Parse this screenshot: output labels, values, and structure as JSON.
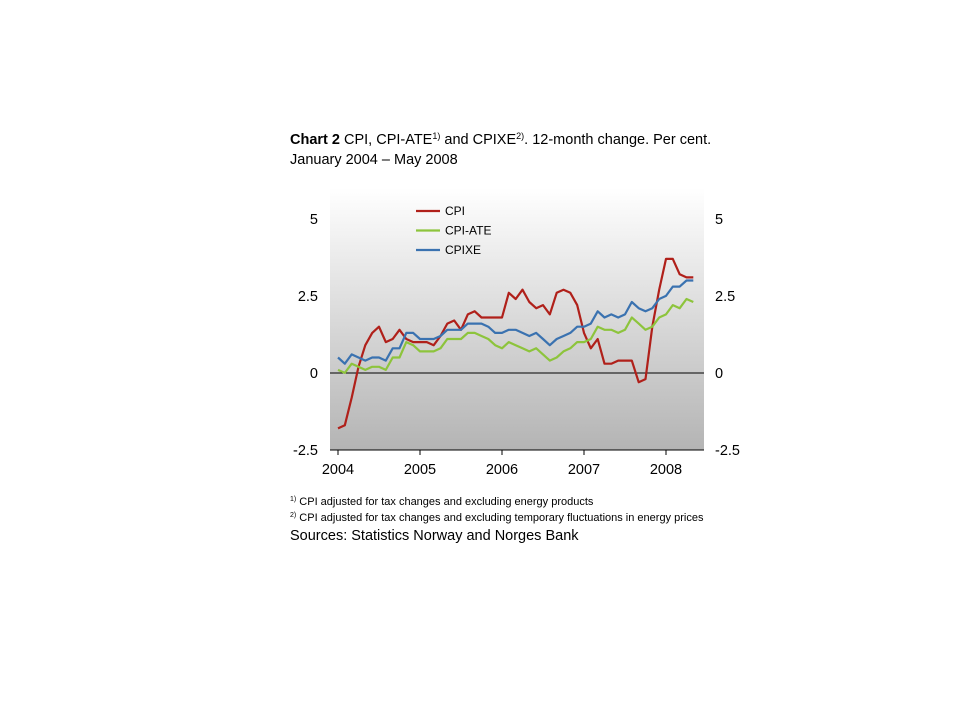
{
  "title": {
    "prefix": "Chart 2",
    "part1": " CPI, CPI-ATE",
    "sup1": "1)",
    "part2": " and CPIXE",
    "sup2": "2)",
    "part3": ". 12-month change. Per cent. January 2004 – May 2008"
  },
  "notes": [
    {
      "sup": "1)",
      "text": " CPI adjusted for tax changes and excluding energy products"
    },
    {
      "sup": "2)",
      "text": " CPI adjusted for tax changes and excluding temporary fluctuations in energy prices"
    }
  ],
  "sources": "Sources: Statistics Norway and Norges Bank",
  "colors": {
    "CPI": "#b0201a",
    "CPI-ATE": "#8dc43c",
    "CPIXE": "#3a72b0",
    "plot_bg_top": "#ffffff",
    "plot_bg_bottom": "#b4b4b4"
  },
  "chart_data": {
    "type": "line",
    "x_start": "2004-01",
    "x_end": "2008-05",
    "frequency": "monthly",
    "xticks": [
      "2004",
      "2005",
      "2006",
      "2007",
      "2008"
    ],
    "yticks_left": [
      "5",
      "2.5",
      "0",
      "-2.5"
    ],
    "yticks_right": [
      "5",
      "2.5",
      "0",
      "-2.5"
    ],
    "ylim": [
      -2.5,
      6
    ],
    "zero_line": true,
    "grid": false,
    "legend_position": "top-left",
    "series": [
      {
        "name": "CPI",
        "values": [
          -1.8,
          -1.7,
          -0.8,
          0.2,
          0.9,
          1.3,
          1.5,
          1.0,
          1.1,
          1.4,
          1.1,
          1.0,
          1.0,
          1.0,
          0.9,
          1.2,
          1.6,
          1.7,
          1.4,
          1.9,
          2.0,
          1.8,
          1.8,
          1.8,
          1.8,
          2.6,
          2.4,
          2.7,
          2.3,
          2.1,
          2.2,
          1.9,
          2.6,
          2.7,
          2.6,
          2.2,
          1.3,
          0.8,
          1.1,
          0.3,
          0.3,
          0.4,
          0.4,
          0.4,
          -0.3,
          -0.2,
          1.5,
          2.7,
          3.7,
          3.7,
          3.2,
          3.1,
          3.1
        ]
      },
      {
        "name": "CPI-ATE",
        "values": [
          0.1,
          0.0,
          0.3,
          0.2,
          0.1,
          0.2,
          0.2,
          0.1,
          0.5,
          0.5,
          1.0,
          0.9,
          0.7,
          0.7,
          0.7,
          0.8,
          1.1,
          1.1,
          1.1,
          1.3,
          1.3,
          1.2,
          1.1,
          0.9,
          0.8,
          1.0,
          0.9,
          0.8,
          0.7,
          0.8,
          0.6,
          0.4,
          0.5,
          0.7,
          0.8,
          1.0,
          1.0,
          1.1,
          1.5,
          1.4,
          1.4,
          1.3,
          1.4,
          1.8,
          1.6,
          1.4,
          1.5,
          1.8,
          1.9,
          2.2,
          2.1,
          2.4,
          2.3
        ]
      },
      {
        "name": "CPIXE",
        "values": [
          0.5,
          0.3,
          0.6,
          0.5,
          0.4,
          0.5,
          0.5,
          0.4,
          0.8,
          0.8,
          1.3,
          1.3,
          1.1,
          1.1,
          1.1,
          1.2,
          1.4,
          1.4,
          1.4,
          1.6,
          1.6,
          1.6,
          1.5,
          1.3,
          1.3,
          1.4,
          1.4,
          1.3,
          1.2,
          1.3,
          1.1,
          0.9,
          1.1,
          1.2,
          1.3,
          1.5,
          1.5,
          1.6,
          2.0,
          1.8,
          1.9,
          1.8,
          1.9,
          2.3,
          2.1,
          2.0,
          2.1,
          2.4,
          2.5,
          2.8,
          2.8,
          3.0,
          3.0
        ]
      }
    ]
  }
}
